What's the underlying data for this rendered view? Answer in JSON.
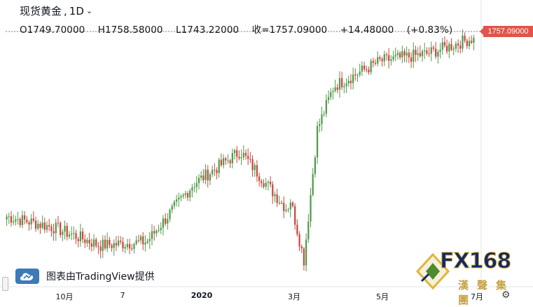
{
  "header": {
    "symbol": "现货黄金",
    "sep": ",",
    "interval": "1D",
    "ohlc": {
      "open": "O1749.70000",
      "high": "H1758.58000",
      "low": "L1743.22000",
      "close": "收=1757.09000",
      "change": "+14.48000",
      "change_pct": "(+0.83%)"
    }
  },
  "last_price_label": "1757.09000",
  "attribution": "图表由TradingView提供",
  "brand": {
    "name": "FX168",
    "subtitle": "漢聲集團"
  },
  "x_axis": {
    "ticks": [
      "10月",
      "7",
      "2020",
      "3月",
      "5月",
      "7月"
    ]
  },
  "colors": {
    "up": "#4f9a4a",
    "down": "#c9463d",
    "price_line": "#e0544a",
    "accent_blue": "#3d7ab8"
  },
  "chart_data": {
    "type": "candlestick",
    "title": "现货黄金, 1D",
    "x": [
      "2019-09",
      "2019-10",
      "2019-11",
      "2019-12",
      "2020-01",
      "2020-02",
      "2020-03",
      "2020-04",
      "2020-05",
      "2020-06",
      "2020-07"
    ],
    "ylim": [
      1440,
      1790
    ],
    "series": [
      {
        "values": [
          1510,
          1495,
          1470,
          1475,
          1555,
          1600,
          1520,
          1690,
          1725,
          1735,
          1757
        ]
      }
    ],
    "last": {
      "open": 1749.7,
      "high": 1758.58,
      "low": 1743.22,
      "close": 1757.09,
      "change": 14.48,
      "change_pct": 0.83
    },
    "grid": false
  }
}
